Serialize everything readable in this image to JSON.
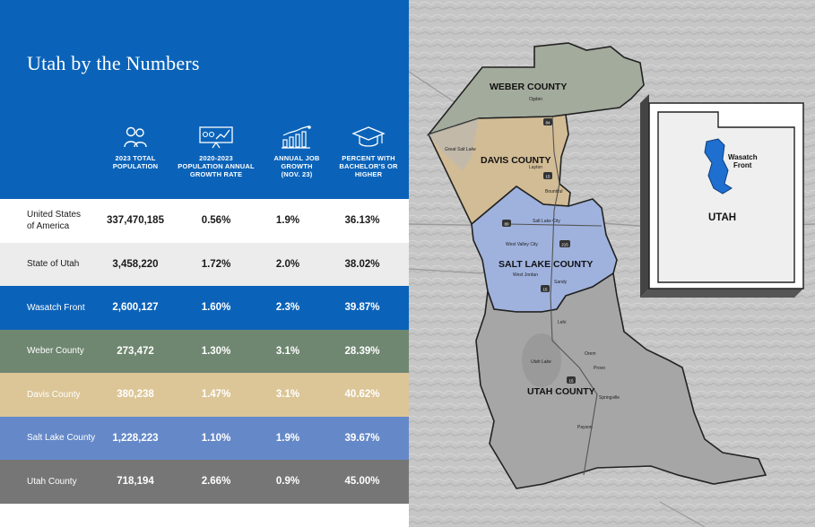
{
  "title": "Utah by the Numbers",
  "columns": [
    {
      "icon": "people-icon",
      "label_lines": [
        "2023 TOTAL",
        "POPULATION"
      ]
    },
    {
      "icon": "presentation-growth-icon",
      "label_lines": [
        "2020-2023",
        "POPULATION ANNUAL",
        "GROWTH RATE"
      ]
    },
    {
      "icon": "bar-chart-growth-icon",
      "label_lines": [
        "ANNUAL JOB",
        "GROWTH",
        "(NOV. 23)"
      ]
    },
    {
      "icon": "graduation-cap-icon",
      "label_lines": [
        "PERCENT WITH",
        "BACHELOR'S OR",
        "HIGHER"
      ]
    }
  ],
  "rows": [
    {
      "name_lines": [
        "United States",
        "of America"
      ],
      "population": "337,470,185",
      "pop_growth": "0.56%",
      "job_growth": "1.9%",
      "bachelors": "36.13%",
      "bg": "#ffffff",
      "text": "#1a1a1a"
    },
    {
      "name_lines": [
        "State of Utah"
      ],
      "population": "3,458,220",
      "pop_growth": "1.72%",
      "job_growth": "2.0%",
      "bachelors": "38.02%",
      "bg": "#ececec",
      "text": "#1a1a1a"
    },
    {
      "name_lines": [
        "Wasatch Front"
      ],
      "population": "2,600,127",
      "pop_growth": "1.60%",
      "job_growth": "2.3%",
      "bachelors": "39.87%",
      "bg": "#0b63b9",
      "text": "#ffffff"
    },
    {
      "name_lines": [
        "Weber County"
      ],
      "population": "273,472",
      "pop_growth": "1.30%",
      "job_growth": "3.1%",
      "bachelors": "28.39%",
      "bg": "#6f8771",
      "text": "#ffffff"
    },
    {
      "name_lines": [
        "Davis County"
      ],
      "population": "380,238",
      "pop_growth": "1.47%",
      "job_growth": "3.1%",
      "bachelors": "40.62%",
      "bg": "#dcc698",
      "text": "#ffffff"
    },
    {
      "name_lines": [
        "Salt Lake County"
      ],
      "population": "1,228,223",
      "pop_growth": "1.10%",
      "job_growth": "1.9%",
      "bachelors": "39.67%",
      "bg": "#6589c8",
      "text": "#ffffff"
    },
    {
      "name_lines": [
        "Utah County"
      ],
      "population": "718,194",
      "pop_growth": "2.66%",
      "job_growth": "0.9%",
      "bachelors": "45.00%",
      "bg": "#767676",
      "text": "#ffffff"
    }
  ],
  "map": {
    "counties": [
      {
        "label": "WEBER COUNTY",
        "color": "#a3ab9c"
      },
      {
        "label": "DAVIS COUNTY",
        "color": "#d2bc95"
      },
      {
        "label": "SALT LAKE COUNTY",
        "color": "#9fb2de"
      },
      {
        "label": "UTAH COUNTY",
        "color": "#a6a6a6"
      }
    ],
    "cities": [
      "Ogden",
      "Layton",
      "Bountiful",
      "Salt Lake City",
      "West Valley City",
      "West Jordan",
      "Sandy",
      "Lehi",
      "Orem",
      "Provo",
      "Springville",
      "Payson"
    ],
    "water": [
      "Great Salt Lake",
      "Utah Lake"
    ],
    "highway_shields": [
      "84",
      "15",
      "80",
      "215",
      "15",
      "15"
    ],
    "inset": {
      "state_label": "UTAH",
      "region_label_lines": [
        "Wasatch",
        "Front"
      ],
      "region_color": "#1f6fd0"
    }
  }
}
